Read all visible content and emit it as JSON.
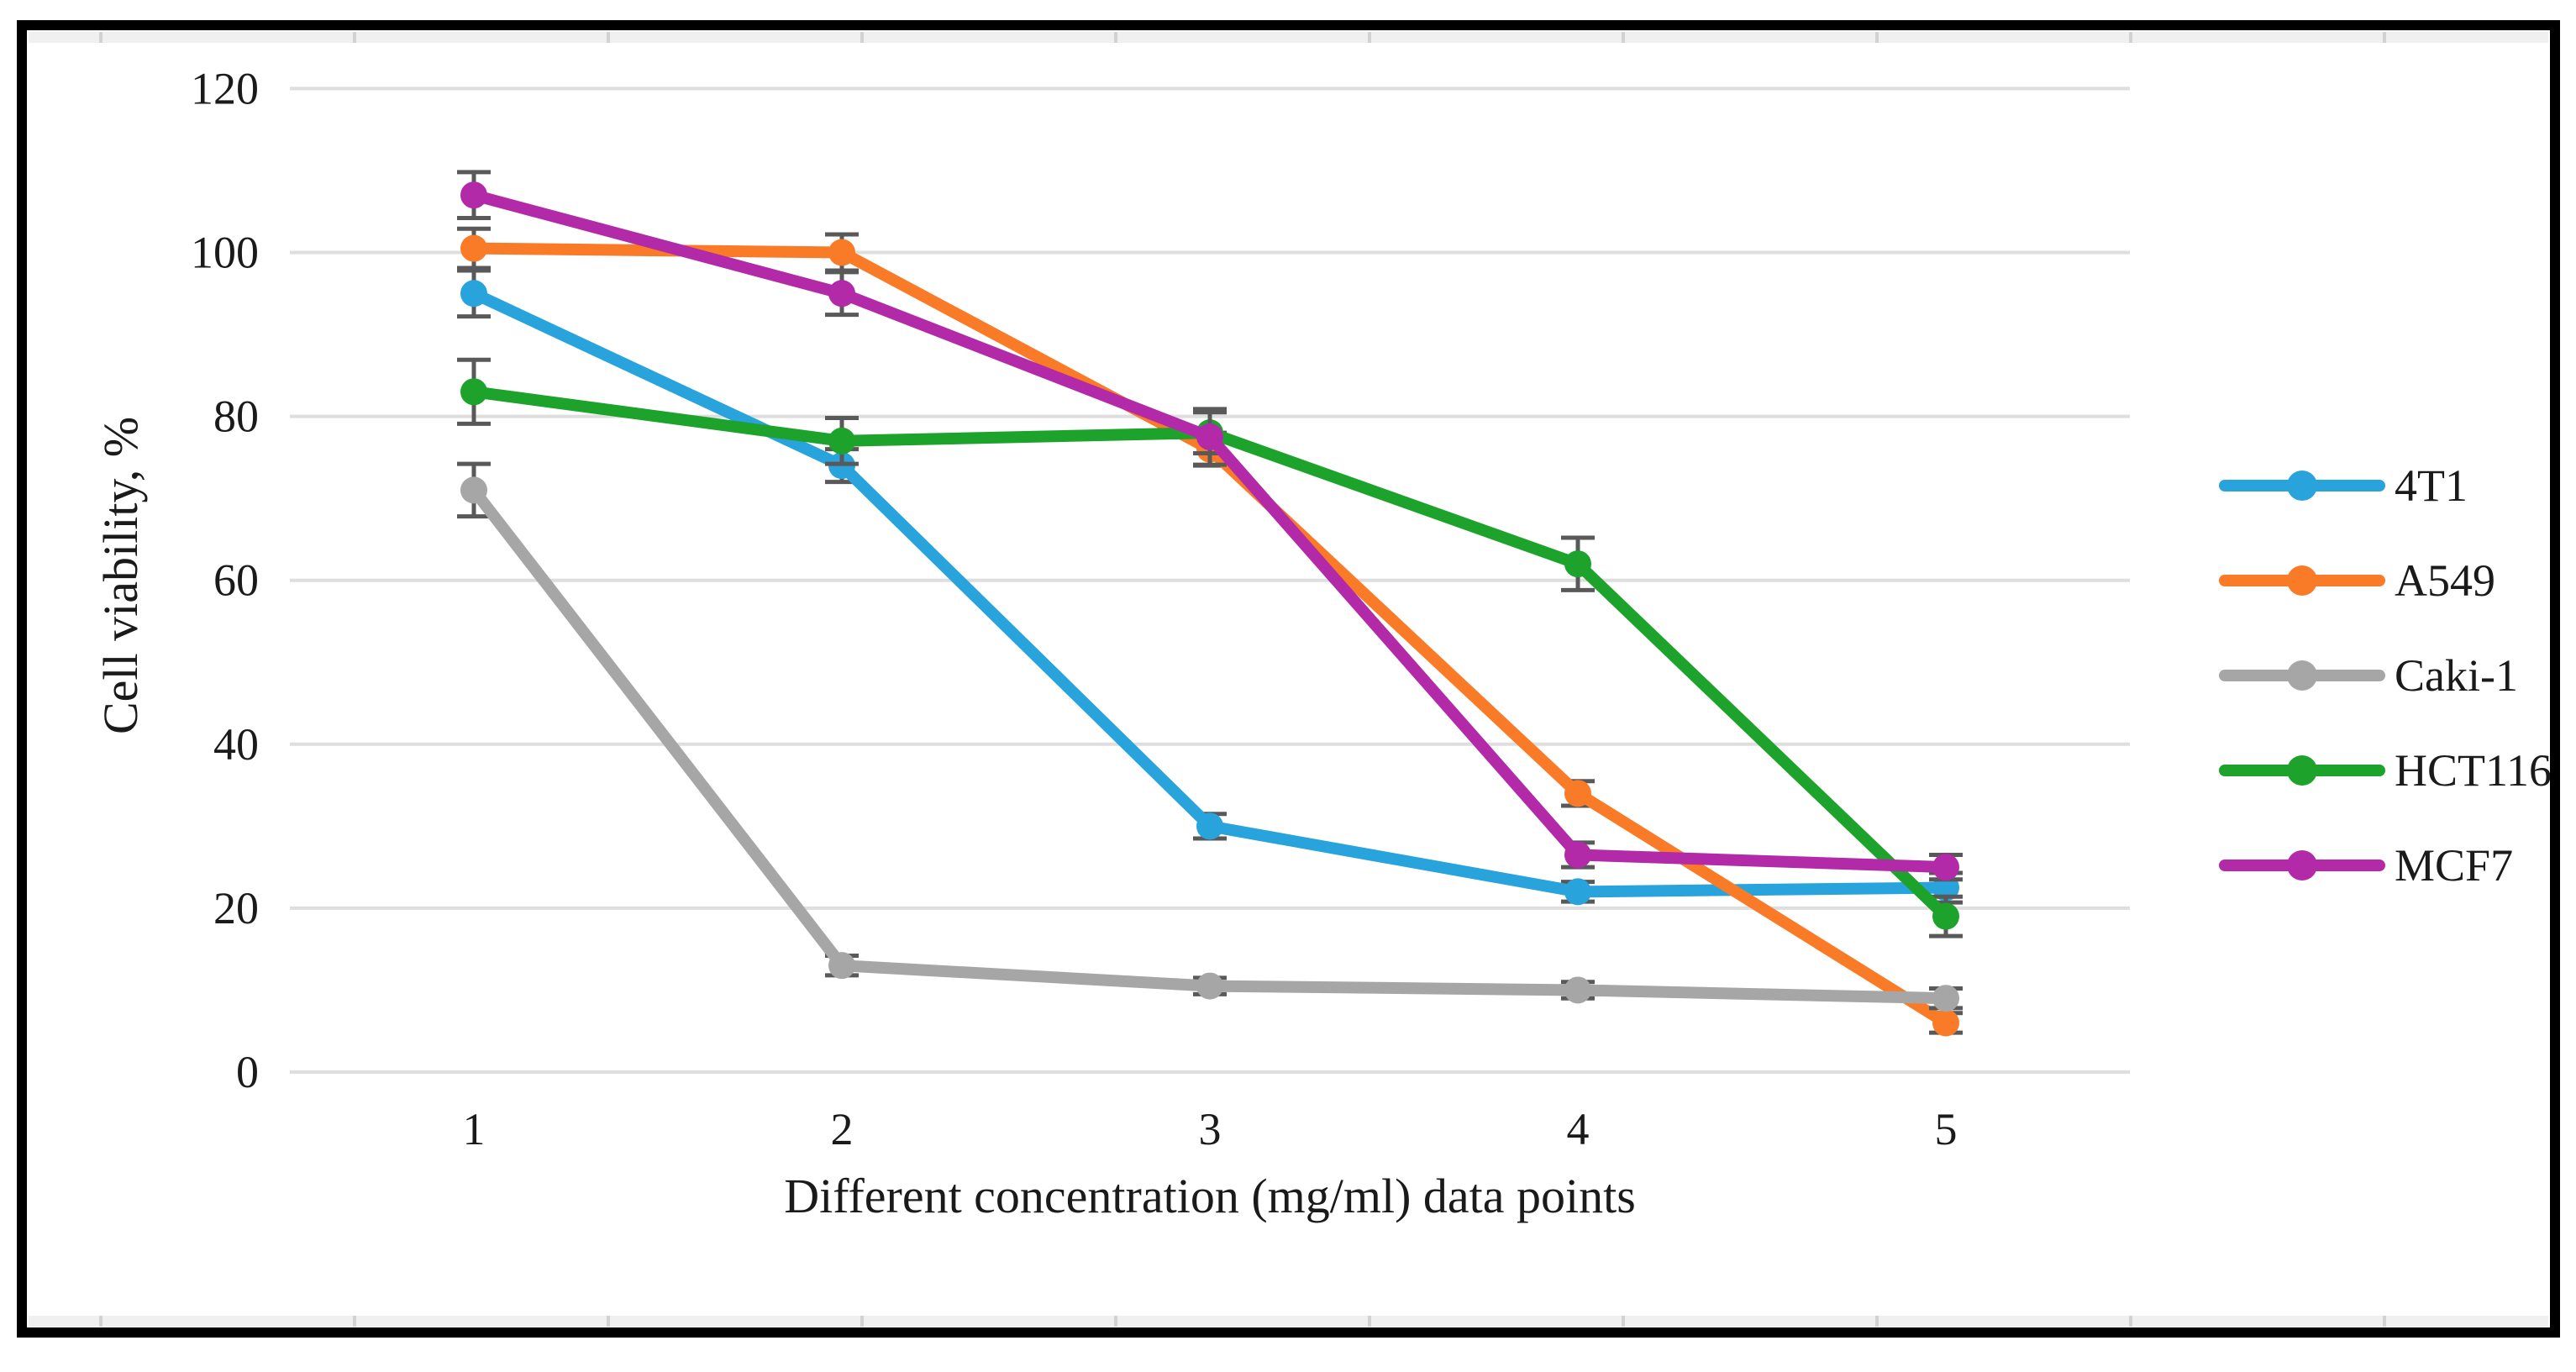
{
  "figure": {
    "frame_color": "#000000",
    "background": "#ffffff"
  },
  "chart_data": {
    "type": "line",
    "title": "",
    "xlabel": "Different concentration (mg/ml) data points",
    "ylabel": "Cell viability, %",
    "categories": [
      "1",
      "2",
      "3",
      "4",
      "5"
    ],
    "ylim": [
      0,
      120
    ],
    "yticks": [
      0,
      20,
      40,
      60,
      80,
      100,
      120
    ],
    "grid": "horizontal gridlines on",
    "gridline_color": "#dedede",
    "error_bar_color": "#595959",
    "legend_position": "right",
    "series": [
      {
        "name": "4T1",
        "color": "#29a3dc",
        "values": [
          95,
          74,
          30,
          22,
          22.5
        ],
        "errors": [
          2.8,
          2.0,
          1.5,
          1.2,
          1.8
        ]
      },
      {
        "name": "A549",
        "color": "#f97b28",
        "values": [
          100.5,
          100,
          76,
          34,
          6
        ],
        "errors": [
          2.4,
          2.2,
          2.0,
          1.5,
          1.2
        ]
      },
      {
        "name": "Caki-1",
        "color": "#a6a6a6",
        "values": [
          71,
          13,
          10.5,
          10,
          9
        ],
        "errors": [
          3.2,
          1.2,
          1.0,
          1.0,
          1.2
        ]
      },
      {
        "name": "HCT116",
        "color": "#1da32b",
        "values": [
          83,
          77,
          78,
          62,
          19
        ],
        "errors": [
          3.9,
          2.8,
          2.5,
          3.2,
          2.4
        ]
      },
      {
        "name": "MCF7",
        "color": "#b32aa9",
        "values": [
          107,
          95,
          77.5,
          26.5,
          25
        ],
        "errors": [
          2.8,
          2.6,
          3.4,
          1.5,
          1.5
        ]
      }
    ]
  }
}
